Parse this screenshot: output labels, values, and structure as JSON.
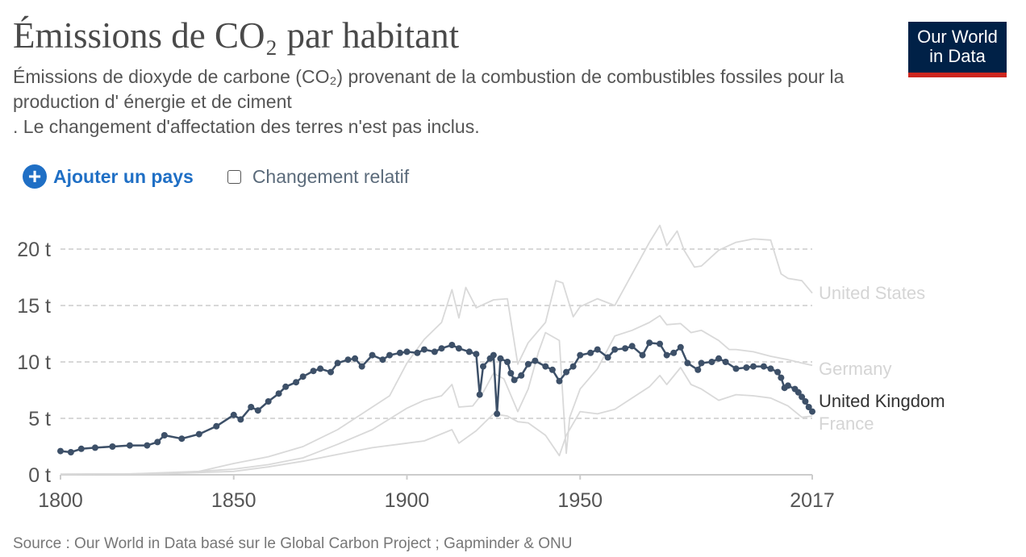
{
  "header": {
    "title": "Émissions de CO₂ par habitant",
    "subtitle_lines": [
      "Émissions de dioxyde de carbone (CO₂) provenant de la combustion de combustibles fossiles pour la",
      "production d' énergie et de ciment",
      ". Le changement d'affectation des terres n'est pas inclus."
    ],
    "logo_line1": "Our World",
    "logo_line2": "in Data"
  },
  "controls": {
    "add_country_label": "Ajouter un pays",
    "add_icon": "plus-circle-icon",
    "relative_change_label": "Changement relatif",
    "relative_change_checked": false
  },
  "footer": {
    "source": "Source : Our World in Data basé sur le Global Carbon Project ; Gapminder & ONU"
  },
  "colors": {
    "highlight": "#3d5068",
    "muted": "#d9d9d9",
    "accent": "#1f6fc5",
    "logo_bg": "#002147",
    "logo_bar": "#ce261e"
  },
  "chart_data": {
    "type": "line",
    "title": "Émissions de CO₂ par habitant",
    "xlim": [
      1800,
      2017
    ],
    "ylim": [
      0,
      20
    ],
    "x_ticks": [
      "1800",
      "1850",
      "1900",
      "1950",
      "2017"
    ],
    "x_tick_values": [
      1800,
      1850,
      1900,
      1950,
      2017
    ],
    "y_ticks": [
      "0 t",
      "5 t",
      "10 t",
      "15 t",
      "20 t"
    ],
    "y_tick_values": [
      0,
      5,
      10,
      15,
      20
    ],
    "grid": "horizontal dashed",
    "legend": "inline labels at line ends (right)",
    "series": [
      {
        "name": "United States",
        "highlight": false,
        "points": [
          [
            1800,
            0.05
          ],
          [
            1820,
            0.08
          ],
          [
            1840,
            0.3
          ],
          [
            1850,
            1.0
          ],
          [
            1860,
            1.6
          ],
          [
            1870,
            2.5
          ],
          [
            1880,
            4.0
          ],
          [
            1888,
            5.6
          ],
          [
            1895,
            7.0
          ],
          [
            1900,
            9.9
          ],
          [
            1905,
            12.0
          ],
          [
            1910,
            13.5
          ],
          [
            1913,
            16.4
          ],
          [
            1915,
            13.9
          ],
          [
            1917,
            16.6
          ],
          [
            1920,
            14.8
          ],
          [
            1925,
            15.5
          ],
          [
            1929,
            15.6
          ],
          [
            1932,
            9.8
          ],
          [
            1935,
            11.7
          ],
          [
            1940,
            13.5
          ],
          [
            1943,
            17.2
          ],
          [
            1945,
            17.0
          ],
          [
            1948,
            14.0
          ],
          [
            1950,
            14.9
          ],
          [
            1955,
            15.6
          ],
          [
            1960,
            15.0
          ],
          [
            1965,
            17.8
          ],
          [
            1970,
            20.6
          ],
          [
            1973,
            22.1
          ],
          [
            1975,
            20.3
          ],
          [
            1978,
            21.6
          ],
          [
            1980,
            19.9
          ],
          [
            1983,
            18.4
          ],
          [
            1985,
            18.5
          ],
          [
            1990,
            19.9
          ],
          [
            1995,
            20.6
          ],
          [
            2000,
            20.9
          ],
          [
            2005,
            20.8
          ],
          [
            2008,
            17.8
          ],
          [
            2010,
            17.4
          ],
          [
            2014,
            17.2
          ],
          [
            2017,
            16.1
          ]
        ]
      },
      {
        "name": "Germany",
        "highlight": false,
        "points": [
          [
            1800,
            0.05
          ],
          [
            1830,
            0.1
          ],
          [
            1850,
            0.5
          ],
          [
            1860,
            0.9
          ],
          [
            1870,
            1.5
          ],
          [
            1880,
            2.7
          ],
          [
            1890,
            4.0
          ],
          [
            1900,
            5.9
          ],
          [
            1905,
            6.6
          ],
          [
            1910,
            7.0
          ],
          [
            1913,
            8.0
          ],
          [
            1915,
            6.0
          ],
          [
            1919,
            6.1
          ],
          [
            1922,
            7.3
          ],
          [
            1925,
            9.0
          ],
          [
            1928,
            8.5
          ],
          [
            1932,
            5.6
          ],
          [
            1935,
            7.6
          ],
          [
            1938,
            10.9
          ],
          [
            1940,
            12.6
          ],
          [
            1944,
            11.9
          ],
          [
            1946,
            1.9
          ],
          [
            1947,
            5.1
          ],
          [
            1950,
            7.6
          ],
          [
            1955,
            9.4
          ],
          [
            1960,
            12.3
          ],
          [
            1965,
            12.8
          ],
          [
            1970,
            13.5
          ],
          [
            1973,
            14.1
          ],
          [
            1975,
            13.3
          ],
          [
            1979,
            13.4
          ],
          [
            1982,
            12.6
          ],
          [
            1985,
            12.8
          ],
          [
            1990,
            11.9
          ],
          [
            1993,
            11.1
          ],
          [
            1995,
            11.1
          ],
          [
            2000,
            10.9
          ],
          [
            2005,
            10.5
          ],
          [
            2010,
            10.2
          ],
          [
            2014,
            9.9
          ],
          [
            2017,
            9.7
          ]
        ]
      },
      {
        "name": "United Kingdom",
        "highlight": true,
        "points": [
          [
            1800,
            2.1
          ],
          [
            1803,
            2.0
          ],
          [
            1806,
            2.3
          ],
          [
            1810,
            2.4
          ],
          [
            1815,
            2.5
          ],
          [
            1820,
            2.6
          ],
          [
            1825,
            2.6
          ],
          [
            1828,
            2.9
          ],
          [
            1830,
            3.5
          ],
          [
            1835,
            3.2
          ],
          [
            1840,
            3.6
          ],
          [
            1845,
            4.3
          ],
          [
            1850,
            5.3
          ],
          [
            1852,
            4.9
          ],
          [
            1855,
            6.0
          ],
          [
            1857,
            5.7
          ],
          [
            1860,
            6.5
          ],
          [
            1863,
            7.2
          ],
          [
            1865,
            7.8
          ],
          [
            1868,
            8.2
          ],
          [
            1870,
            8.7
          ],
          [
            1873,
            9.2
          ],
          [
            1875,
            9.4
          ],
          [
            1878,
            9.1
          ],
          [
            1880,
            9.9
          ],
          [
            1883,
            10.2
          ],
          [
            1885,
            10.3
          ],
          [
            1887,
            9.6
          ],
          [
            1890,
            10.6
          ],
          [
            1893,
            10.2
          ],
          [
            1895,
            10.6
          ],
          [
            1898,
            10.8
          ],
          [
            1900,
            10.9
          ],
          [
            1903,
            10.8
          ],
          [
            1905,
            11.1
          ],
          [
            1908,
            10.9
          ],
          [
            1910,
            11.2
          ],
          [
            1913,
            11.5
          ],
          [
            1915,
            11.2
          ],
          [
            1918,
            10.9
          ],
          [
            1920,
            10.7
          ],
          [
            1921,
            7.1
          ],
          [
            1922,
            9.6
          ],
          [
            1924,
            10.3
          ],
          [
            1925,
            10.6
          ],
          [
            1926,
            5.4
          ],
          [
            1927,
            10.3
          ],
          [
            1929,
            10.0
          ],
          [
            1930,
            9.0
          ],
          [
            1931,
            8.4
          ],
          [
            1933,
            8.8
          ],
          [
            1935,
            9.8
          ],
          [
            1937,
            10.1
          ],
          [
            1940,
            9.6
          ],
          [
            1942,
            9.3
          ],
          [
            1944,
            8.3
          ],
          [
            1946,
            9.1
          ],
          [
            1948,
            9.6
          ],
          [
            1950,
            10.6
          ],
          [
            1953,
            10.8
          ],
          [
            1955,
            11.1
          ],
          [
            1958,
            10.4
          ],
          [
            1960,
            11.1
          ],
          [
            1963,
            11.2
          ],
          [
            1965,
            11.4
          ],
          [
            1968,
            10.6
          ],
          [
            1970,
            11.7
          ],
          [
            1973,
            11.6
          ],
          [
            1975,
            10.6
          ],
          [
            1977,
            10.8
          ],
          [
            1979,
            11.3
          ],
          [
            1981,
            9.9
          ],
          [
            1984,
            9.3
          ],
          [
            1985,
            9.9
          ],
          [
            1988,
            10.0
          ],
          [
            1990,
            10.3
          ],
          [
            1992,
            10.0
          ],
          [
            1995,
            9.4
          ],
          [
            1998,
            9.5
          ],
          [
            2000,
            9.6
          ],
          [
            2003,
            9.6
          ],
          [
            2005,
            9.4
          ],
          [
            2007,
            9.1
          ],
          [
            2008,
            8.6
          ],
          [
            2009,
            7.7
          ],
          [
            2010,
            7.9
          ],
          [
            2012,
            7.6
          ],
          [
            2013,
            7.3
          ],
          [
            2014,
            6.9
          ],
          [
            2015,
            6.5
          ],
          [
            2016,
            6.0
          ],
          [
            2017,
            5.6
          ]
        ]
      },
      {
        "name": "France",
        "highlight": false,
        "points": [
          [
            1800,
            0.05
          ],
          [
            1830,
            0.1
          ],
          [
            1850,
            0.3
          ],
          [
            1860,
            0.7
          ],
          [
            1870,
            1.2
          ],
          [
            1880,
            1.8
          ],
          [
            1890,
            2.4
          ],
          [
            1900,
            2.8
          ],
          [
            1905,
            3.0
          ],
          [
            1913,
            4.0
          ],
          [
            1915,
            2.8
          ],
          [
            1920,
            3.9
          ],
          [
            1925,
            5.4
          ],
          [
            1929,
            5.2
          ],
          [
            1932,
            4.7
          ],
          [
            1935,
            4.6
          ],
          [
            1940,
            3.5
          ],
          [
            1944,
            1.7
          ],
          [
            1946,
            3.5
          ],
          [
            1950,
            5.6
          ],
          [
            1955,
            5.4
          ],
          [
            1960,
            5.8
          ],
          [
            1965,
            6.8
          ],
          [
            1970,
            7.8
          ],
          [
            1973,
            8.8
          ],
          [
            1975,
            8.0
          ],
          [
            1979,
            9.5
          ],
          [
            1982,
            8.0
          ],
          [
            1985,
            7.6
          ],
          [
            1990,
            6.6
          ],
          [
            1995,
            7.1
          ],
          [
            2000,
            7.0
          ],
          [
            2005,
            6.8
          ],
          [
            2010,
            6.1
          ],
          [
            2014,
            5.1
          ],
          [
            2017,
            5.2
          ]
        ]
      }
    ]
  }
}
